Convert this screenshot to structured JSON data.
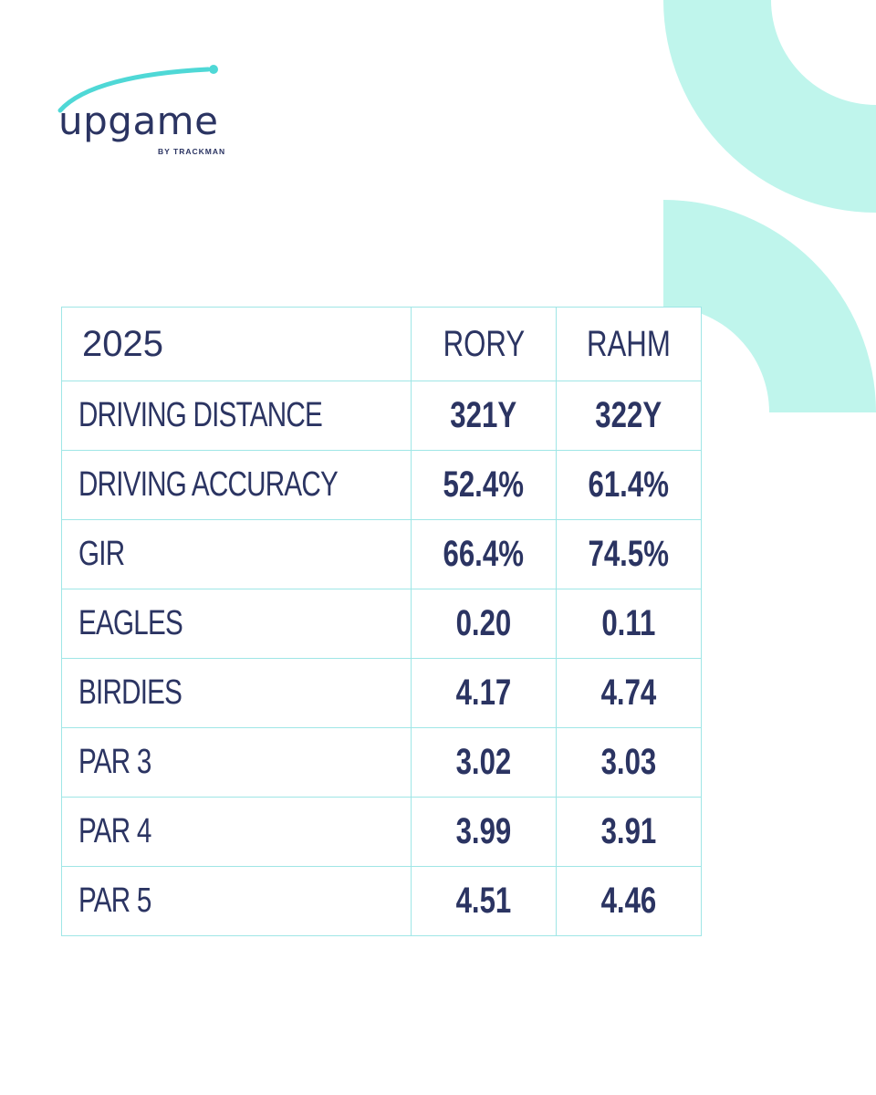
{
  "brand": {
    "name": "upgame",
    "sub": "BY TRACKMAN",
    "accent_color": "#4fd8d6",
    "text_color": "#2b3462",
    "deco_color": "#bff5ec"
  },
  "table": {
    "year": "2025",
    "players": [
      "RORY",
      "RAHM"
    ],
    "rows": [
      {
        "label": "DRIVING DISTANCE",
        "rory": "321Y",
        "rahm": "322Y"
      },
      {
        "label": "DRIVING ACCURACY",
        "rory": "52.4%",
        "rahm": "61.4%"
      },
      {
        "label": "GIR",
        "rory": "66.4%",
        "rahm": "74.5%"
      },
      {
        "label": "EAGLES",
        "rory": "0.20",
        "rahm": "0.11"
      },
      {
        "label": "BIRDIES",
        "rory": "4.17",
        "rahm": "4.74"
      },
      {
        "label": "PAR 3",
        "rory": "3.02",
        "rahm": "3.03"
      },
      {
        "label": "PAR 4",
        "rory": "3.99",
        "rahm": "3.91"
      },
      {
        "label": "PAR 5",
        "rory": "4.51",
        "rahm": "4.46"
      }
    ]
  }
}
